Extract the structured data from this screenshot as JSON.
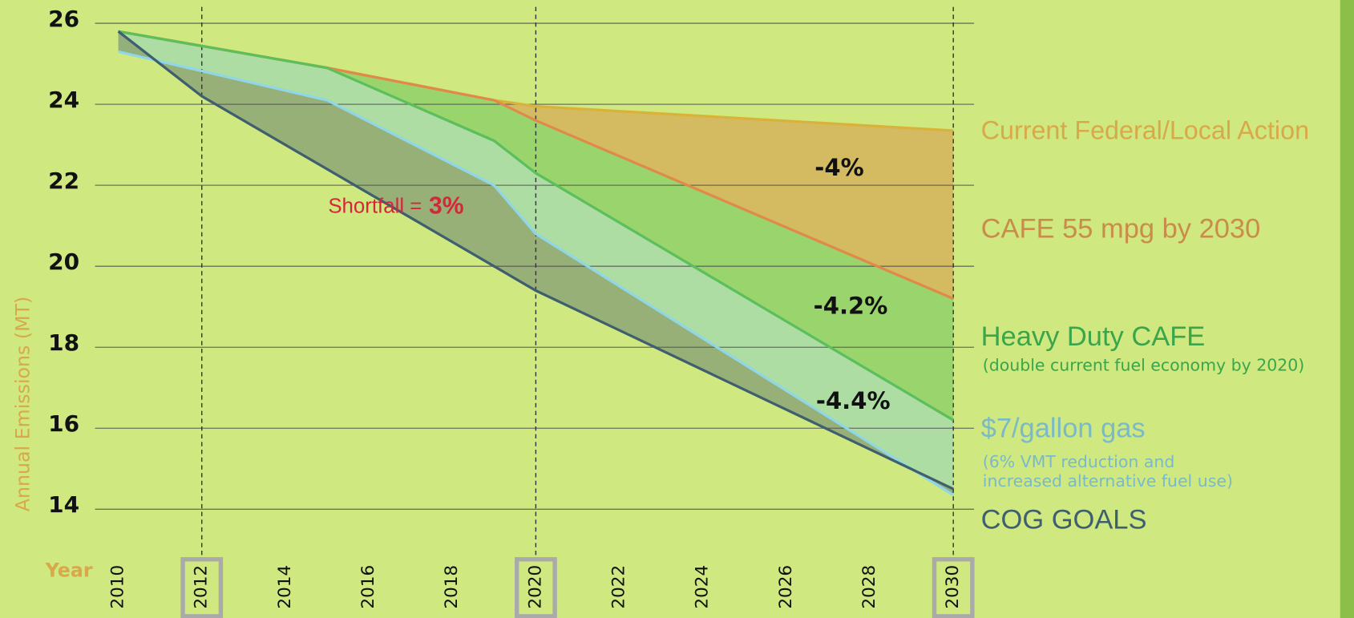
{
  "chart_data": {
    "type": "area-line",
    "ylabel": "Annual Emissions (MT)",
    "xlabel": "Year",
    "xlim": [
      2010,
      2030
    ],
    "xticks": [
      2010,
      2012,
      2014,
      2016,
      2018,
      2020,
      2022,
      2024,
      2026,
      2028,
      2030
    ],
    "highlight_x": [
      2012,
      2020,
      2030
    ],
    "ylim": [
      14,
      26
    ],
    "yticks": [
      14,
      16,
      18,
      20,
      22,
      24,
      26
    ],
    "grid": true,
    "series": [
      {
        "name": "Current Federal/Local Action",
        "color": "#d9b23a",
        "label_color": "#d9a84a",
        "fill": "#d4b55e",
        "x": [
          2010,
          2015,
          2019,
          2020,
          2030
        ],
        "values": [
          25.8,
          24.9,
          24.1,
          23.95,
          23.35
        ]
      },
      {
        "name": "CAFE 55 mpg by 2030",
        "color": "#e08a4a",
        "label_color": "#c98c4a",
        "fill": "#94d16a",
        "x": [
          2010,
          2015,
          2019,
          2020,
          2030
        ],
        "values": [
          25.8,
          24.9,
          24.1,
          23.6,
          19.2
        ]
      },
      {
        "name": "Heavy Duty CAFE",
        "note": [
          "(double current fuel economy by 2020)"
        ],
        "color": "#5cbf5c",
        "label_color": "#3aa54a",
        "fill": "#a9dca6",
        "x": [
          2010,
          2015,
          2019,
          2020,
          2030
        ],
        "values": [
          25.8,
          24.9,
          23.1,
          22.3,
          16.2
        ]
      },
      {
        "name": "$7/gallon gas",
        "note": [
          "(6% VMT reduction and",
          "increased alternative fuel use)"
        ],
        "color": "#8fd6e6",
        "label_color": "#7ab9c8",
        "fill": "#8faa78",
        "x": [
          2010,
          2015,
          2019,
          2020,
          2030
        ],
        "values": [
          25.3,
          24.1,
          22.0,
          20.8,
          14.35
        ]
      },
      {
        "name": "COG GOALS",
        "color": "#3f5f6e",
        "label_color": "#3f5f6e",
        "x": [
          2010,
          2012,
          2020,
          2030
        ],
        "values": [
          25.8,
          24.2,
          19.4,
          14.5
        ]
      }
    ],
    "annotations": [
      "-4%",
      "-4.2%",
      "-4.4%"
    ],
    "shortfall": {
      "text": "Shortfall =",
      "value_text": "3%"
    }
  }
}
